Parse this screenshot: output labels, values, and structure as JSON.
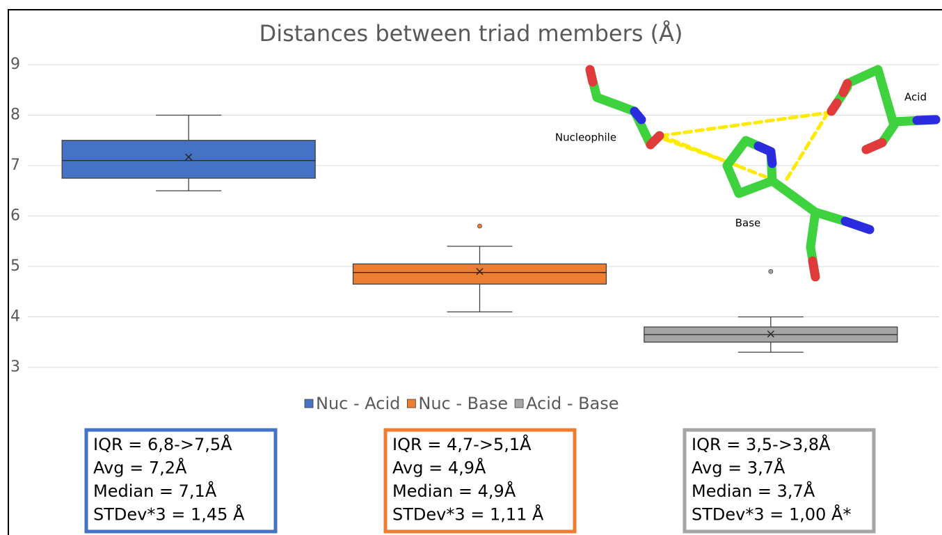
{
  "chart_data": {
    "type": "box",
    "title": "Distances between triad members (Å)",
    "ylim": [
      3,
      9
    ],
    "yticks": [
      3,
      4,
      5,
      6,
      7,
      8,
      9
    ],
    "grid": true,
    "legend": "bottom",
    "series": [
      {
        "name": "Nuc - Acid",
        "color": "#4472c4",
        "whisker_low": 6.5,
        "q1": 6.75,
        "median": 7.1,
        "q3": 7.5,
        "whisker_high": 8.0,
        "mean": 7.17,
        "outliers": []
      },
      {
        "name": "Nuc - Base",
        "color": "#ed7d31",
        "whisker_low": 4.1,
        "q1": 4.65,
        "median": 4.88,
        "q3": 5.05,
        "whisker_high": 5.4,
        "mean": 4.9,
        "outliers": [
          5.8
        ]
      },
      {
        "name": "Acid - Base",
        "color": "#a5a5a5",
        "whisker_low": 3.3,
        "q1": 3.5,
        "median": 3.65,
        "q3": 3.8,
        "whisker_high": 4.0,
        "mean": 3.66,
        "outliers": [
          4.9
        ]
      }
    ]
  },
  "inset": {
    "labels": [
      "Nucleophile",
      "Acid",
      "Base"
    ]
  },
  "stat_boxes": [
    {
      "lines": [
        "IQR = 6,8->7,5Å",
        "Avg = 7,2Å",
        "Median = 7,1Å",
        "STDev*3 = 1,45 Å"
      ]
    },
    {
      "lines": [
        "IQR = 4,7->5,1Å",
        "Avg = 4,9Å",
        "Median = 4,9Å",
        "STDev*3 = 1,11 Å"
      ]
    },
    {
      "lines": [
        "IQR = 3,5->3,8Å",
        "Avg = 3,7Å",
        "Median = 3,7Å",
        "STDev*3 = 1,00 Å*"
      ]
    }
  ]
}
